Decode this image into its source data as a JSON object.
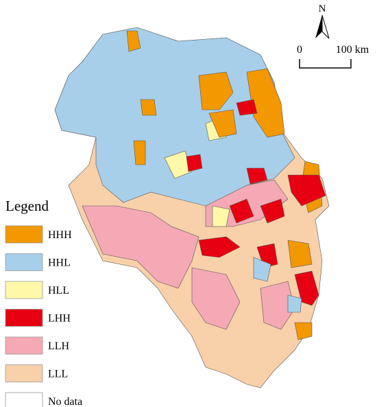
{
  "legend": {
    "title": "Legend",
    "items": [
      {
        "label": "HHH",
        "color": "#f39800"
      },
      {
        "label": "HHL",
        "color": "#a8cfe9"
      },
      {
        "label": "HLL",
        "color": "#fff8a8"
      },
      {
        "label": "LHH",
        "color": "#e60012"
      },
      {
        "label": "LLH",
        "color": "#f4a9b5"
      },
      {
        "label": "LLL",
        "color": "#f8d0a9"
      },
      {
        "label": "No data",
        "color": "#ffffff"
      }
    ]
  },
  "north_arrow": {
    "label": "N"
  },
  "scale_bar": {
    "start_label": "0",
    "end_label": "100 km"
  }
}
